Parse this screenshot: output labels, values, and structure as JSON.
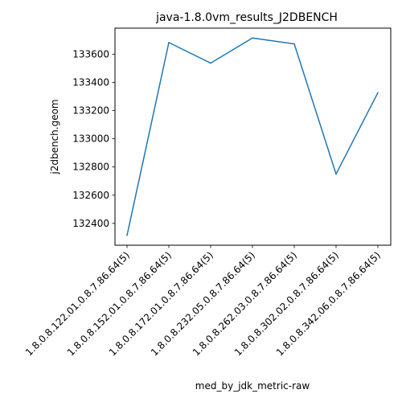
{
  "chart_data": {
    "type": "line",
    "title": "java-1.8.0vm_results_J2DBENCH",
    "xlabel": "med_by_jdk_metric-raw",
    "ylabel": "j2dbench.geom",
    "categories": [
      "1.8.0.8.122.01.0.8.7.86.64(5)",
      "1.8.0.8.152.01.0.8.7.86.64(5)",
      "1.8.0.8.172.01.0.8.7.86.64(5)",
      "1.8.0.8.232.05.0.8.7.86.64(5)",
      "1.8.0.8.262.03.0.8.7.86.64(5)",
      "1.8.0.8.302.02.0.8.7.86.64(5)",
      "1.8.0.8.342.06.0.8.7.86.64(5)"
    ],
    "series": [
      {
        "values": [
          132315,
          133683,
          133537,
          133715,
          133673,
          132750,
          133327
        ],
        "color": "#1f77b4"
      }
    ],
    "yticks": [
      132400,
      132600,
      132800,
      133000,
      133200,
      133400,
      133600
    ],
    "ylim": [
      132245,
      133785
    ],
    "grid": false,
    "legend": "none"
  }
}
